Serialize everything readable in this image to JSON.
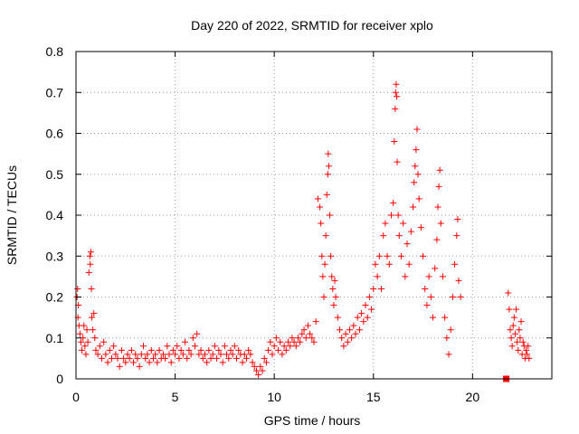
{
  "chart_data": {
    "type": "scatter",
    "title": "Day 220 of 2022, SRMTID for receiver xplo",
    "xlabel": "GPS time / hours",
    "ylabel": "SRMTID / TECUs",
    "xlim": [
      0,
      24
    ],
    "ylim": [
      0,
      0.8
    ],
    "xticks": [
      0,
      5,
      10,
      15,
      20
    ],
    "yticks": [
      0,
      0.1,
      0.2,
      0.3,
      0.4,
      0.5,
      0.6,
      0.7,
      0.8
    ],
    "grid": true,
    "marker": "+",
    "color": "#ff0000",
    "series": [
      {
        "name": "SRMTID",
        "points": [
          [
            0.05,
            0.2
          ],
          [
            0.08,
            0.22
          ],
          [
            0.1,
            0.15
          ],
          [
            0.12,
            0.18
          ],
          [
            0.15,
            0.13
          ],
          [
            0.2,
            0.11
          ],
          [
            0.25,
            0.09
          ],
          [
            0.3,
            0.07
          ],
          [
            0.35,
            0.1
          ],
          [
            0.4,
            0.13
          ],
          [
            0.45,
            0.08
          ],
          [
            0.5,
            0.06
          ],
          [
            0.55,
            0.12
          ],
          [
            0.6,
            0.09
          ],
          [
            0.65,
            0.26
          ],
          [
            0.7,
            0.3
          ],
          [
            0.72,
            0.28
          ],
          [
            0.75,
            0.31
          ],
          [
            0.78,
            0.22
          ],
          [
            0.8,
            0.15
          ],
          [
            0.85,
            0.12
          ],
          [
            0.9,
            0.16
          ],
          [
            0.95,
            0.1
          ],
          [
            1.0,
            0.07
          ],
          [
            1.1,
            0.06
          ],
          [
            1.2,
            0.08
          ],
          [
            1.3,
            0.05
          ],
          [
            1.4,
            0.09
          ],
          [
            1.5,
            0.06
          ],
          [
            1.6,
            0.04
          ],
          [
            1.7,
            0.07
          ],
          [
            1.8,
            0.05
          ],
          [
            1.9,
            0.08
          ],
          [
            2.0,
            0.06
          ],
          [
            2.1,
            0.05
          ],
          [
            2.2,
            0.03
          ],
          [
            2.3,
            0.07
          ],
          [
            2.4,
            0.05
          ],
          [
            2.5,
            0.04
          ],
          [
            2.6,
            0.06
          ],
          [
            2.7,
            0.05
          ],
          [
            2.8,
            0.07
          ],
          [
            2.9,
            0.04
          ],
          [
            3.0,
            0.06
          ],
          [
            3.1,
            0.05
          ],
          [
            3.2,
            0.03
          ],
          [
            3.3,
            0.06
          ],
          [
            3.4,
            0.08
          ],
          [
            3.5,
            0.05
          ],
          [
            3.6,
            0.06
          ],
          [
            3.7,
            0.04
          ],
          [
            3.8,
            0.07
          ],
          [
            3.9,
            0.05
          ],
          [
            4.0,
            0.06
          ],
          [
            4.1,
            0.04
          ],
          [
            4.2,
            0.07
          ],
          [
            4.3,
            0.05
          ],
          [
            4.4,
            0.06
          ],
          [
            4.5,
            0.05
          ],
          [
            4.6,
            0.08
          ],
          [
            4.7,
            0.06
          ],
          [
            4.8,
            0.04
          ],
          [
            4.9,
            0.07
          ],
          [
            5.0,
            0.06
          ],
          [
            5.1,
            0.08
          ],
          [
            5.2,
            0.05
          ],
          [
            5.3,
            0.07
          ],
          [
            5.4,
            0.06
          ],
          [
            5.5,
            0.09
          ],
          [
            5.6,
            0.05
          ],
          [
            5.7,
            0.07
          ],
          [
            5.8,
            0.06
          ],
          [
            5.9,
            0.1
          ],
          [
            6.0,
            0.08
          ],
          [
            6.1,
            0.11
          ],
          [
            6.2,
            0.06
          ],
          [
            6.3,
            0.07
          ],
          [
            6.4,
            0.05
          ],
          [
            6.5,
            0.06
          ],
          [
            6.6,
            0.04
          ],
          [
            6.7,
            0.07
          ],
          [
            6.8,
            0.05
          ],
          [
            6.9,
            0.06
          ],
          [
            7.0,
            0.08
          ],
          [
            7.1,
            0.05
          ],
          [
            7.2,
            0.07
          ],
          [
            7.3,
            0.06
          ],
          [
            7.4,
            0.04
          ],
          [
            7.5,
            0.08
          ],
          [
            7.6,
            0.06
          ],
          [
            7.7,
            0.05
          ],
          [
            7.8,
            0.07
          ],
          [
            7.9,
            0.06
          ],
          [
            8.0,
            0.08
          ],
          [
            8.1,
            0.05
          ],
          [
            8.2,
            0.07
          ],
          [
            8.3,
            0.06
          ],
          [
            8.4,
            0.04
          ],
          [
            8.5,
            0.06
          ],
          [
            8.6,
            0.05
          ],
          [
            8.7,
            0.07
          ],
          [
            8.8,
            0.06
          ],
          [
            8.9,
            0.04
          ],
          [
            9.0,
            0.03
          ],
          [
            9.1,
            0.02
          ],
          [
            9.2,
            0.01
          ],
          [
            9.3,
            0.03
          ],
          [
            9.4,
            0.02
          ],
          [
            9.5,
            0.05
          ],
          [
            9.6,
            0.04
          ],
          [
            9.7,
            0.07
          ],
          [
            9.8,
            0.09
          ],
          [
            9.9,
            0.06
          ],
          [
            10.0,
            0.08
          ],
          [
            10.1,
            0.1
          ],
          [
            10.2,
            0.07
          ],
          [
            10.3,
            0.09
          ],
          [
            10.4,
            0.06
          ],
          [
            10.5,
            0.08
          ],
          [
            10.6,
            0.07
          ],
          [
            10.7,
            0.09
          ],
          [
            10.8,
            0.08
          ],
          [
            10.9,
            0.1
          ],
          [
            11.0,
            0.09
          ],
          [
            11.1,
            0.08
          ],
          [
            11.2,
            0.1
          ],
          [
            11.3,
            0.09
          ],
          [
            11.4,
            0.11
          ],
          [
            11.5,
            0.12
          ],
          [
            11.6,
            0.1
          ],
          [
            11.7,
            0.13
          ],
          [
            11.8,
            0.11
          ],
          [
            11.9,
            0.1
          ],
          [
            12.0,
            0.09
          ],
          [
            12.1,
            0.14
          ],
          [
            12.2,
            0.44
          ],
          [
            12.3,
            0.42
          ],
          [
            12.35,
            0.38
          ],
          [
            12.4,
            0.3
          ],
          [
            12.45,
            0.25
          ],
          [
            12.5,
            0.2
          ],
          [
            12.55,
            0.28
          ],
          [
            12.6,
            0.35
          ],
          [
            12.65,
            0.45
          ],
          [
            12.7,
            0.5
          ],
          [
            12.72,
            0.55
          ],
          [
            12.75,
            0.52
          ],
          [
            12.8,
            0.4
          ],
          [
            12.85,
            0.3
          ],
          [
            12.9,
            0.25
          ],
          [
            12.95,
            0.22
          ],
          [
            13.0,
            0.18
          ],
          [
            13.05,
            0.24
          ],
          [
            13.1,
            0.2
          ],
          [
            13.2,
            0.15
          ],
          [
            13.3,
            0.12
          ],
          [
            13.4,
            0.1
          ],
          [
            13.5,
            0.08
          ],
          [
            13.6,
            0.11
          ],
          [
            13.7,
            0.09
          ],
          [
            13.8,
            0.12
          ],
          [
            13.9,
            0.1
          ],
          [
            14.0,
            0.13
          ],
          [
            14.1,
            0.11
          ],
          [
            14.2,
            0.15
          ],
          [
            14.3,
            0.12
          ],
          [
            14.4,
            0.16
          ],
          [
            14.5,
            0.14
          ],
          [
            14.6,
            0.18
          ],
          [
            14.7,
            0.15
          ],
          [
            14.8,
            0.2
          ],
          [
            14.9,
            0.17
          ],
          [
            15.0,
            0.22
          ],
          [
            15.1,
            0.28
          ],
          [
            15.2,
            0.25
          ],
          [
            15.3,
            0.3
          ],
          [
            15.4,
            0.22
          ],
          [
            15.5,
            0.35
          ],
          [
            15.6,
            0.38
          ],
          [
            15.7,
            0.3
          ],
          [
            15.8,
            0.28
          ],
          [
            15.9,
            0.4
          ],
          [
            16.0,
            0.43
          ],
          [
            16.05,
            0.58
          ],
          [
            16.1,
            0.66
          ],
          [
            16.12,
            0.7
          ],
          [
            16.15,
            0.72
          ],
          [
            16.18,
            0.69
          ],
          [
            16.2,
            0.53
          ],
          [
            16.25,
            0.4
          ],
          [
            16.3,
            0.35
          ],
          [
            16.4,
            0.3
          ],
          [
            16.5,
            0.38
          ],
          [
            16.6,
            0.25
          ],
          [
            16.7,
            0.33
          ],
          [
            16.8,
            0.28
          ],
          [
            16.9,
            0.36
          ],
          [
            17.0,
            0.42
          ],
          [
            17.05,
            0.48
          ],
          [
            17.1,
            0.52
          ],
          [
            17.15,
            0.56
          ],
          [
            17.2,
            0.61
          ],
          [
            17.25,
            0.5
          ],
          [
            17.3,
            0.44
          ],
          [
            17.4,
            0.37
          ],
          [
            17.5,
            0.3
          ],
          [
            17.6,
            0.22
          ],
          [
            17.7,
            0.18
          ],
          [
            17.8,
            0.25
          ],
          [
            17.9,
            0.2
          ],
          [
            18.0,
            0.15
          ],
          [
            18.1,
            0.27
          ],
          [
            18.2,
            0.34
          ],
          [
            18.25,
            0.42
          ],
          [
            18.3,
            0.47
          ],
          [
            18.35,
            0.51
          ],
          [
            18.4,
            0.38
          ],
          [
            18.5,
            0.25
          ],
          [
            18.6,
            0.15
          ],
          [
            18.7,
            0.1
          ],
          [
            18.8,
            0.06
          ],
          [
            18.9,
            0.12
          ],
          [
            19.0,
            0.2
          ],
          [
            19.1,
            0.28
          ],
          [
            19.2,
            0.35
          ],
          [
            19.25,
            0.39
          ],
          [
            19.3,
            0.24
          ],
          [
            19.4,
            0.2
          ],
          [
            21.8,
            0.21
          ],
          [
            21.85,
            0.17
          ],
          [
            21.9,
            0.12
          ],
          [
            21.95,
            0.1
          ],
          [
            22.0,
            0.08
          ],
          [
            22.05,
            0.13
          ],
          [
            22.1,
            0.15
          ],
          [
            22.15,
            0.11
          ],
          [
            22.2,
            0.17
          ],
          [
            22.25,
            0.09
          ],
          [
            22.3,
            0.07
          ],
          [
            22.35,
            0.12
          ],
          [
            22.4,
            0.1
          ],
          [
            22.45,
            0.14
          ],
          [
            22.5,
            0.06
          ],
          [
            22.55,
            0.09
          ],
          [
            22.6,
            0.08
          ],
          [
            22.65,
            0.05
          ],
          [
            22.7,
            0.07
          ],
          [
            22.75,
            0.06
          ],
          [
            22.8,
            0.08
          ],
          [
            22.85,
            0.05
          ]
        ]
      }
    ],
    "markers": [
      {
        "shape": "square",
        "x": 21.7,
        "y": 0.0
      }
    ]
  }
}
